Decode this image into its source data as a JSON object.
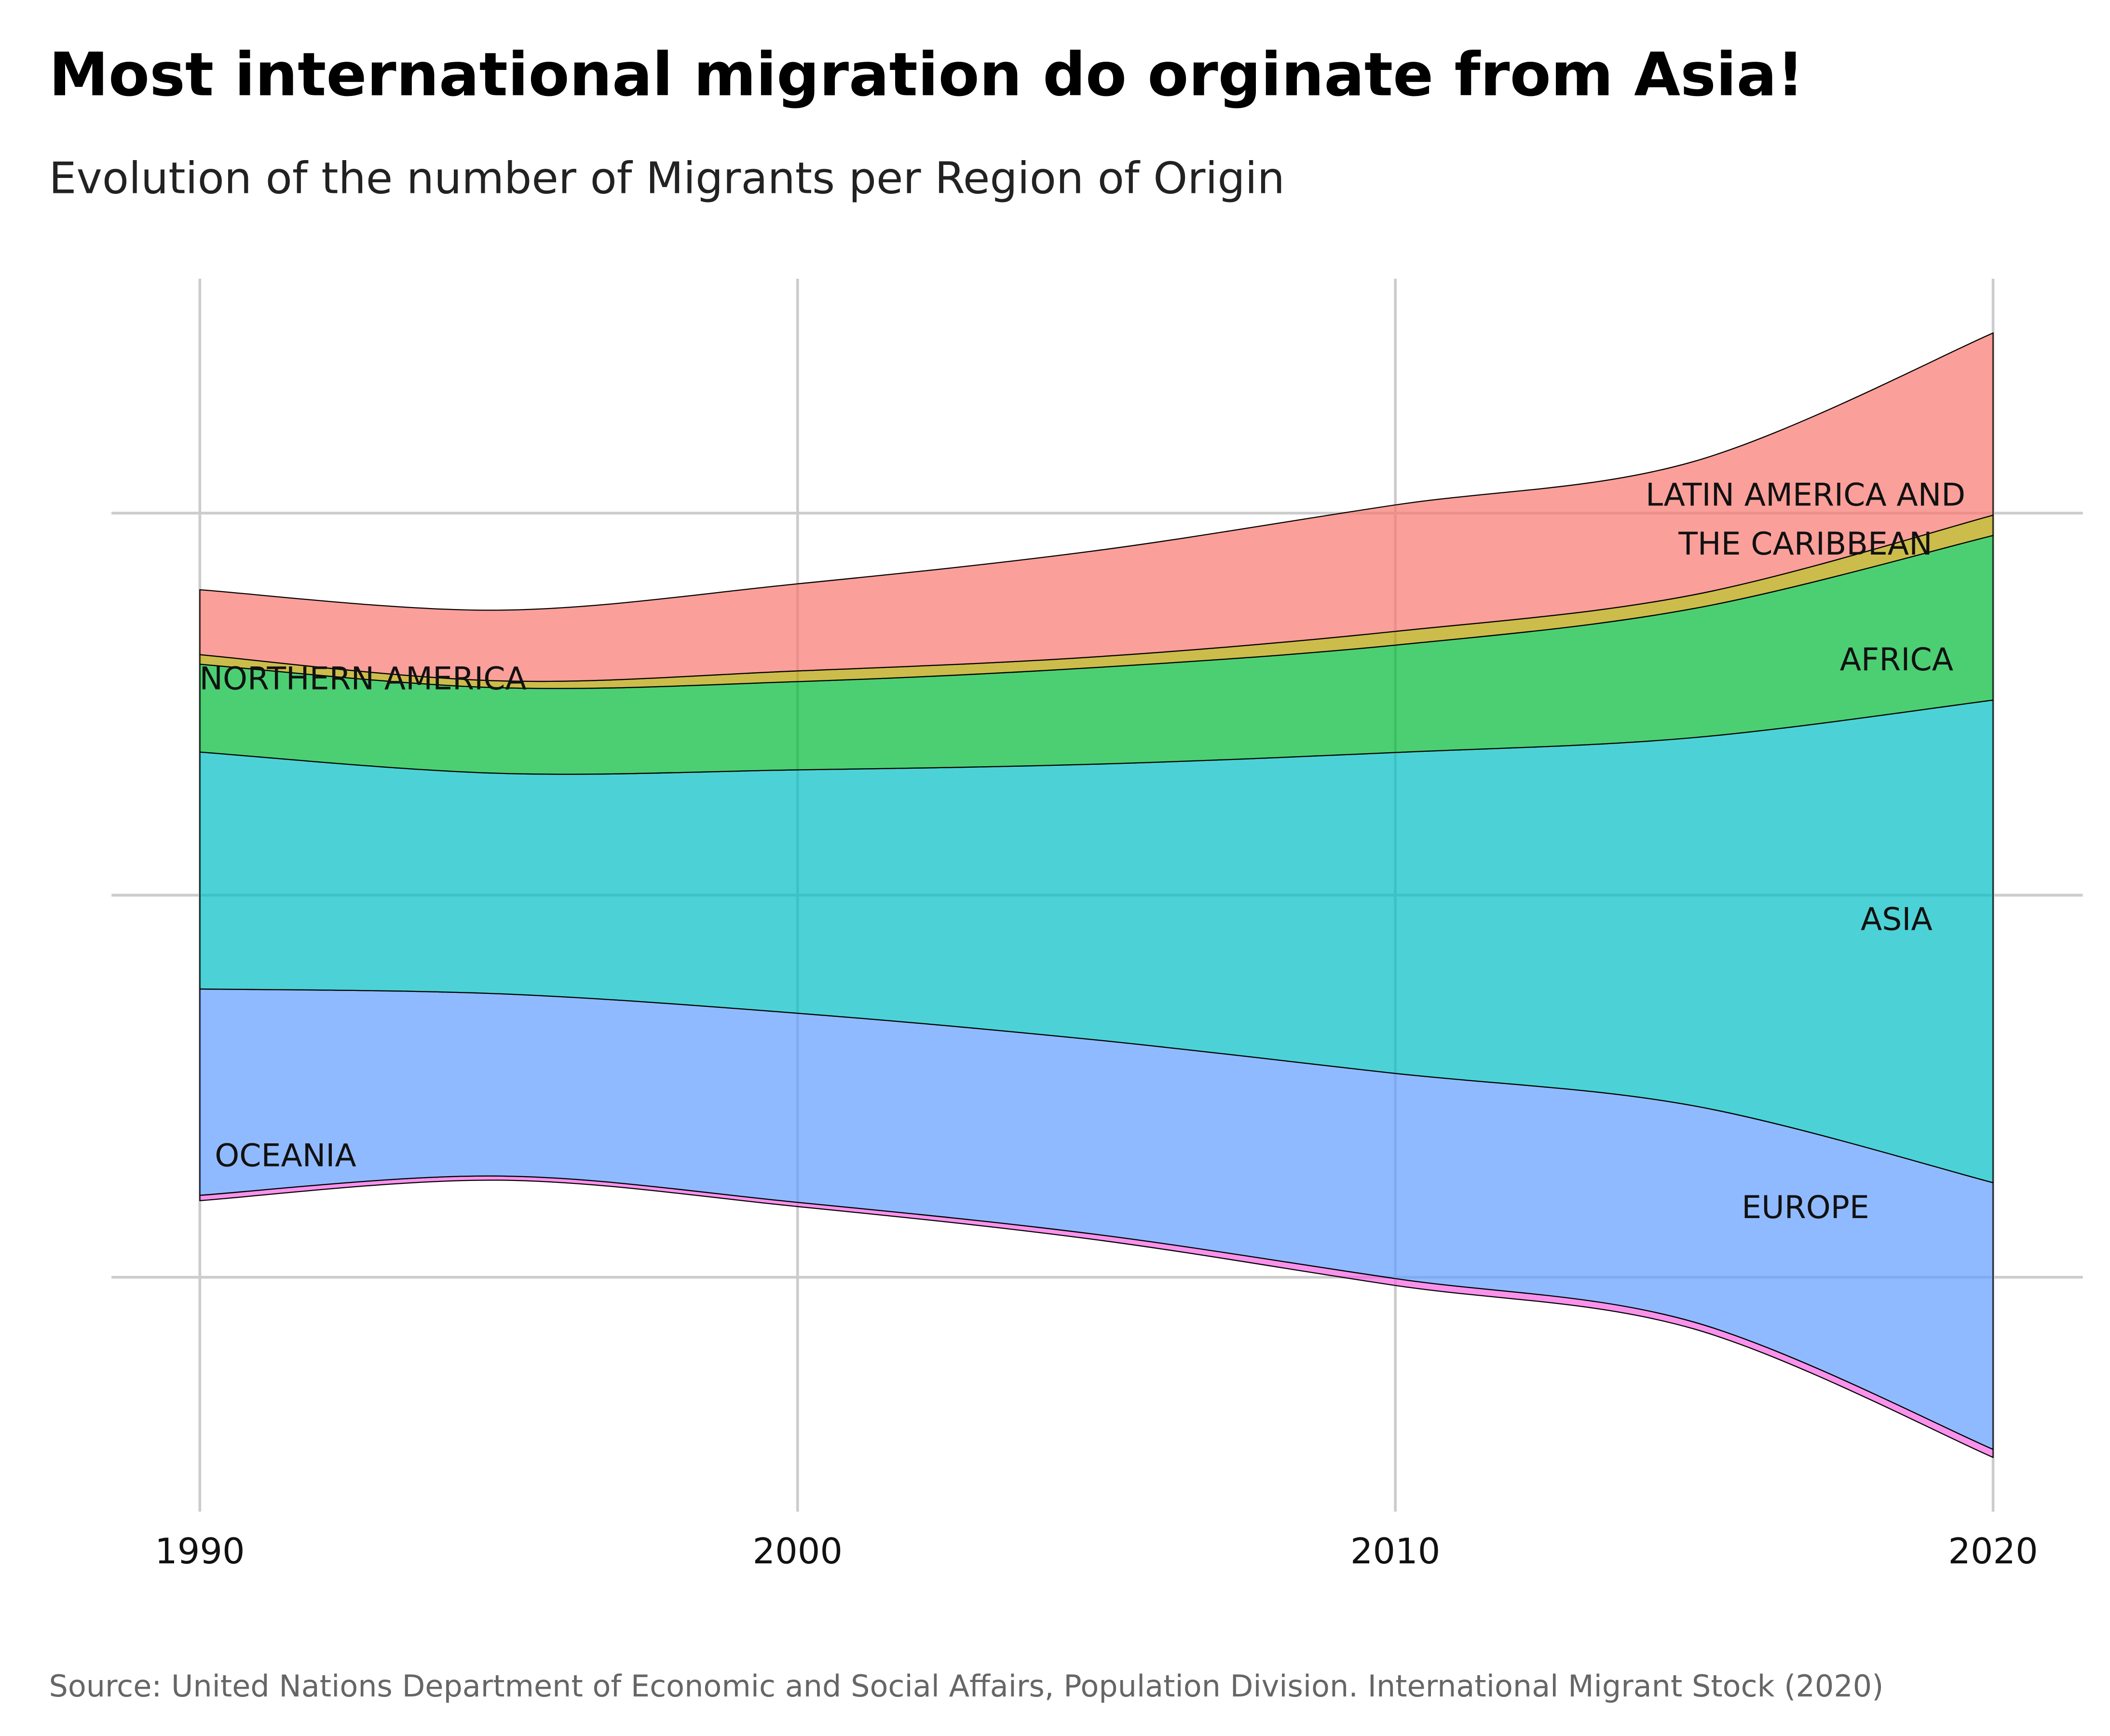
{
  "chart_data": {
    "type": "streamgraph",
    "title": "Most international migration do orginate from Asia!",
    "subtitle": "Evolution of the number of Migrants per Region of Origin",
    "source": "Source: United Nations Department of Economic and Social Affairs, Population Division. International Migrant Stock (2020)",
    "x": [
      1990,
      1995,
      2000,
      2005,
      2010,
      2015,
      2020
    ],
    "xlim": [
      1990,
      2020
    ],
    "xticks": [
      1990,
      2000,
      2010,
      2020
    ],
    "ylim": [
      -161,
      161
    ],
    "yticks": [
      -100,
      0,
      100
    ],
    "grid": true,
    "series": [
      {
        "name": "OCEANIA",
        "color": "#F564E3",
        "values": [
          1.4,
          1.1,
          1.1,
          1.4,
          1.8,
          1.8,
          2.1
        ]
      },
      {
        "name": "EUROPE",
        "color": "#619CFF",
        "values": [
          54,
          47.7,
          49.5,
          50.9,
          53.7,
          56.6,
          69.8
        ]
      },
      {
        "name": "ASIA",
        "color": "#00BFC4",
        "values": [
          62,
          57.7,
          63.7,
          72.2,
          84,
          96.4,
          126.3
        ]
      },
      {
        "name": "AFRICA",
        "color": "#00BA38",
        "values": [
          23,
          22.4,
          23.1,
          25.3,
          28.1,
          33.8,
          43.1
        ]
      },
      {
        "name": "NORTHERN AMERICA",
        "color": "#B79F00",
        "values": [
          2.5,
          1.8,
          2.8,
          2.8,
          3.6,
          3.6,
          5.3
        ]
      },
      {
        "name": "LATIN AMERICA AND THE CARIBBEAN",
        "color": "#F8766D",
        "values": [
          17,
          18.5,
          22.8,
          27.8,
          33.1,
          34.9,
          47.7
        ]
      }
    ]
  }
}
